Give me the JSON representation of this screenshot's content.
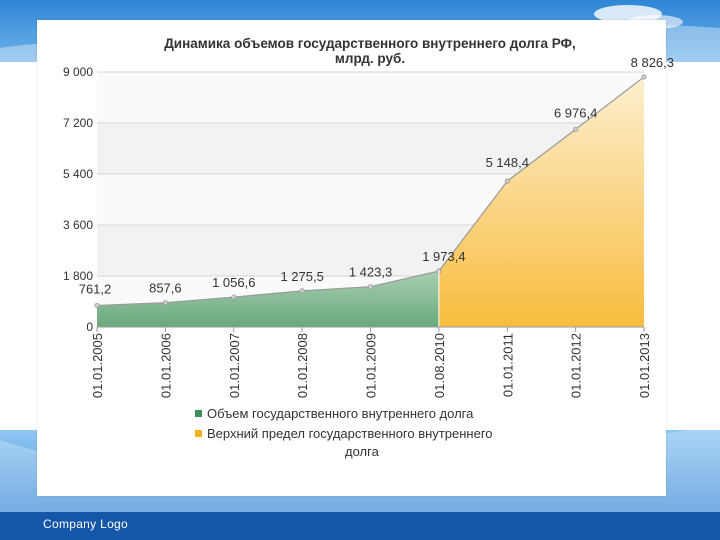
{
  "footer": {
    "company_logo_text": "Company  Logo"
  },
  "colors": {
    "actual_fill": "#7fb58e",
    "actual_fill_top": "#a8d0b2",
    "forecast_fill": "#f9c24b",
    "forecast_fill_top": "#fdefcf",
    "line": "#9a9a9a",
    "legend_actual": "#3f8f5b",
    "legend_forecast": "#f6b21e",
    "slide_blue": "#1c6bbf"
  },
  "chart_data": {
    "type": "area",
    "title": "Динамика объемов государственного внутреннего долга РФ, млрд. руб.",
    "xlabel": "",
    "ylabel": "",
    "categories": [
      "01.01.2005",
      "01.01.2006",
      "01.01.2007",
      "01.01.2008",
      "01.01.2009",
      "01.08.2010",
      "01.01.2011",
      "01.01.2012",
      "01.01.2013"
    ],
    "ylim": [
      0,
      9000
    ],
    "yticks": [
      "0",
      "1 800",
      "3 600",
      "5 400",
      "7 200",
      "9 000"
    ],
    "grid": true,
    "legend_position": "bottom",
    "series": [
      {
        "name": "Объем государственного внутреннего долга",
        "values": [
          761.2,
          857.6,
          1056.6,
          1275.5,
          1423.3,
          1973.4,
          null,
          null,
          null
        ],
        "labels": [
          "761,2",
          "857,6",
          "1 056,6",
          "1 275,5",
          "1 423,3",
          "",
          "",
          "",
          ""
        ]
      },
      {
        "name": "Верхний предел государственного внутреннего долга",
        "values": [
          null,
          null,
          null,
          null,
          null,
          1973.4,
          5148.4,
          6976.4,
          8826.3
        ],
        "labels": [
          "",
          "",
          "",
          "",
          "",
          "1 973,4",
          "5 148,4",
          "6 976,4",
          "8 826,3"
        ]
      }
    ]
  }
}
